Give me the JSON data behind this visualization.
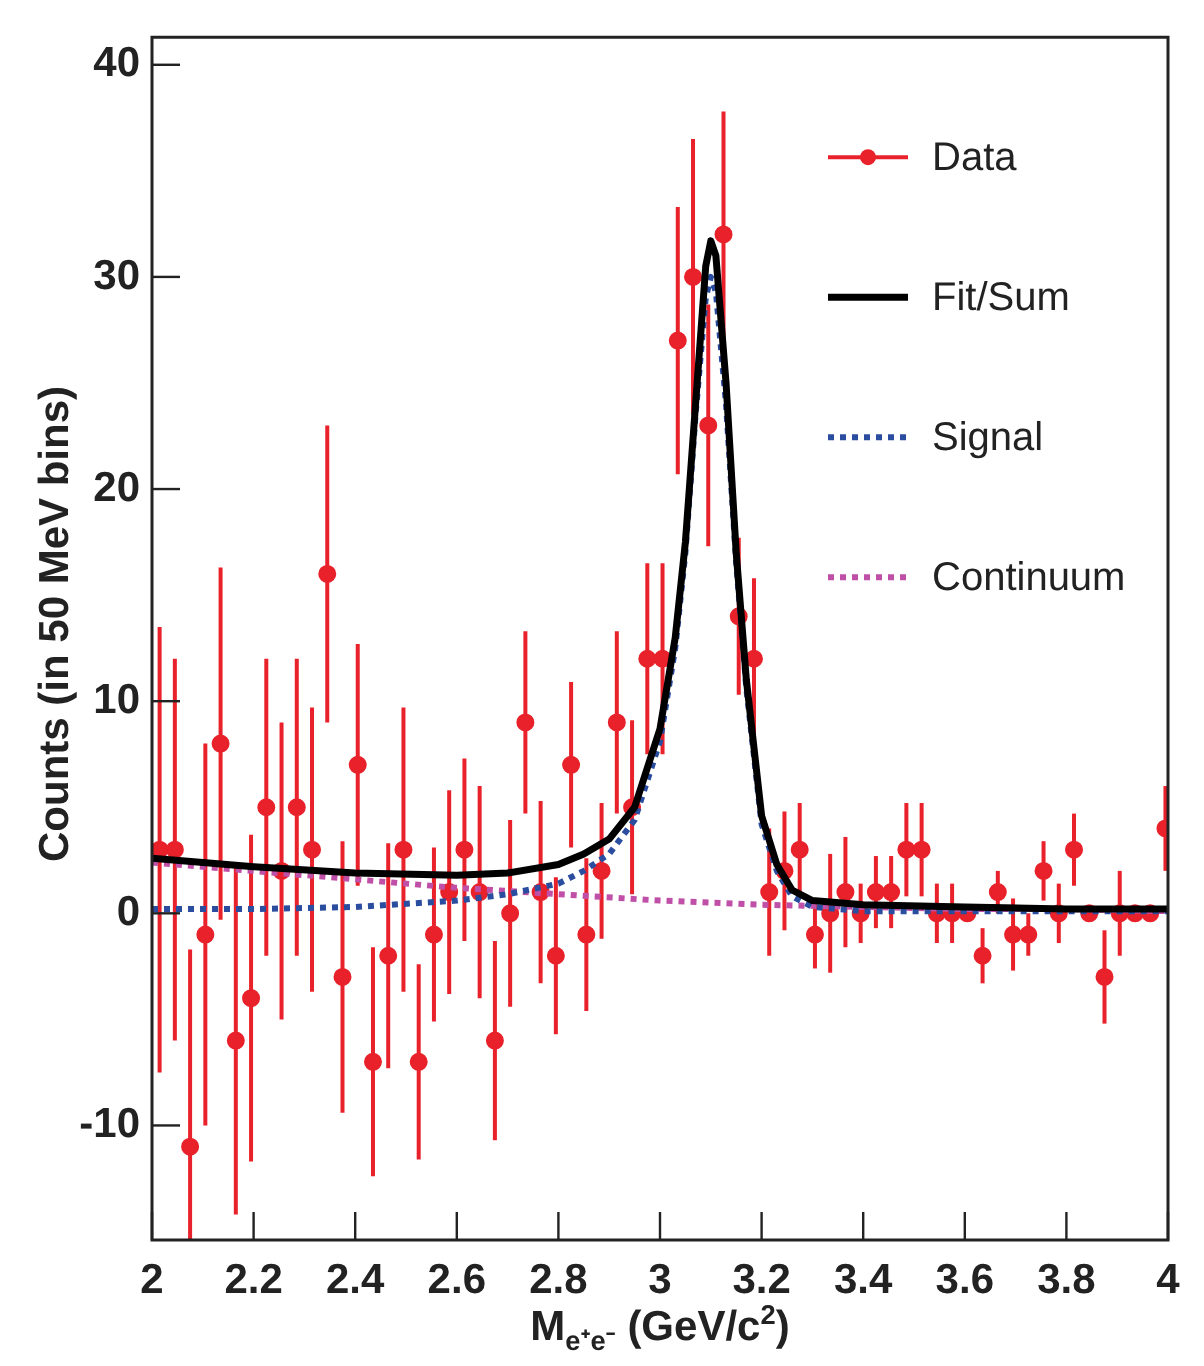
{
  "chart_data": {
    "type": "scatter",
    "xlabel": "M$_{e⁺e⁻}$ (GeV/c$^{2}$)",
    "ylabel": "Counts (in 50 MeV bins)",
    "xlim": [
      2,
      4
    ],
    "xticks": [
      2,
      2.2,
      2.4,
      2.6,
      2.8,
      3,
      3.2,
      3.4,
      3.6,
      3.8,
      4
    ],
    "ylim": [
      -15.4,
      41.3
    ],
    "yticks": [
      -10,
      0,
      10,
      20,
      30,
      40
    ],
    "legend": "top right",
    "grid": false,
    "series": [
      {
        "name": "Data",
        "type": "scatter",
        "color": "#e8212a",
        "marker": "circle",
        "x": [
          2.015,
          2.045,
          2.075,
          2.105,
          2.135,
          2.165,
          2.195,
          2.225,
          2.255,
          2.285,
          2.315,
          2.345,
          2.375,
          2.405,
          2.435,
          2.465,
          2.495,
          2.525,
          2.555,
          2.585,
          2.615,
          2.645,
          2.675,
          2.705,
          2.735,
          2.765,
          2.795,
          2.825,
          2.855,
          2.885,
          2.915,
          2.945,
          2.975,
          3.005,
          3.035,
          3.065,
          3.095,
          3.125,
          3.155,
          3.185,
          3.215,
          3.245,
          3.275,
          3.305,
          3.335,
          3.365,
          3.395,
          3.425,
          3.455,
          3.485,
          3.515,
          3.545,
          3.575,
          3.605,
          3.635,
          3.665,
          3.695,
          3.725,
          3.755,
          3.785,
          3.815,
          3.845,
          3.875,
          3.905,
          3.935,
          3.965,
          3.995
        ],
        "values": [
          3,
          3,
          -11,
          -1,
          8,
          -6,
          -4,
          5,
          2,
          5,
          3,
          16,
          -3,
          7,
          -7,
          -2,
          3,
          -7,
          -1,
          1,
          3,
          1,
          -6,
          0,
          9,
          1,
          -2,
          7,
          -1,
          2,
          9,
          5,
          12,
          12,
          27,
          30,
          23,
          32,
          14,
          12,
          1,
          2,
          3,
          -1,
          0,
          1,
          0,
          1,
          1,
          3,
          3,
          0,
          0,
          0,
          -2,
          1,
          -1,
          -1,
          2,
          0,
          3,
          0,
          -3,
          0,
          0,
          0,
          4
        ],
        "errors": [
          10.5,
          9,
          [
            -15.4,
            -1.7
          ],
          9,
          8.3,
          8.2,
          7.7,
          7,
          7,
          7,
          6.7,
          7,
          6.4,
          5.7,
          5.4,
          5.3,
          6.7,
          4.6,
          4.1,
          4.8,
          4.3,
          5,
          4.7,
          4.4,
          4.3,
          4.3,
          3.7,
          3.9,
          3.6,
          3.2,
          4.3,
          4.1,
          4.5,
          4.5,
          6.3,
          6.5,
          5.7,
          5.8,
          3.7,
          3.8,
          3,
          2.8,
          2.2,
          1.6,
          2.8,
          2.6,
          1.4,
          1.7,
          1.7,
          2.2,
          2.2,
          1.4,
          1.4,
          null,
          1.3,
          1,
          1.7,
          1,
          1.4,
          1.4,
          1.7,
          null,
          2.2,
          2,
          null,
          null,
          2
        ]
      },
      {
        "name": "Fit/Sum",
        "type": "line",
        "color": "#000000",
        "marker": "none",
        "line_style": "solid",
        "x": [
          2.0,
          2.2,
          2.4,
          2.6,
          2.7,
          2.8,
          2.85,
          2.9,
          2.95,
          3.0,
          3.03,
          3.05,
          3.07,
          3.09,
          3.1,
          3.11,
          3.13,
          3.15,
          3.17,
          3.2,
          3.23,
          3.26,
          3.3,
          3.4,
          3.6,
          3.8,
          4.0
        ],
        "values": [
          2.6,
          2.2,
          1.9,
          1.8,
          1.9,
          2.3,
          2.8,
          3.5,
          5,
          8.7,
          13,
          17.5,
          24,
          30.5,
          31.7,
          31,
          25,
          17,
          11,
          4.6,
          2.3,
          1.1,
          0.6,
          0.4,
          0.3,
          0.2,
          0.2
        ]
      },
      {
        "name": "Signal",
        "type": "line",
        "color": "#2a4da0",
        "marker": "none",
        "line_style": "dotted",
        "x": [
          2.0,
          2.2,
          2.4,
          2.6,
          2.7,
          2.8,
          2.85,
          2.9,
          2.95,
          3.0,
          3.03,
          3.05,
          3.07,
          3.09,
          3.1,
          3.11,
          3.13,
          3.15,
          3.17,
          3.2,
          3.23,
          3.26,
          3.3,
          3.4,
          3.6,
          3.8,
          4.0
        ],
        "values": [
          0.2,
          0.2,
          0.3,
          0.6,
          0.9,
          1.4,
          2,
          2.8,
          4.4,
          8.1,
          12.5,
          17,
          23.5,
          29,
          30,
          29.3,
          24,
          16.5,
          10.6,
          4.2,
          2,
          0.8,
          0.3,
          0.1,
          0.1,
          0.1,
          0.1
        ]
      },
      {
        "name": "Continuum",
        "type": "line",
        "color": "#c04fa8",
        "marker": "none",
        "line_style": "dotted",
        "x": [
          2.0,
          2.2,
          2.4,
          2.6,
          2.8,
          3.0,
          3.2,
          3.4,
          3.6,
          3.8,
          4.0
        ],
        "values": [
          2.4,
          2.0,
          1.6,
          1.2,
          0.9,
          0.6,
          0.4,
          0.3,
          0.2,
          0.2,
          0.1
        ]
      }
    ]
  }
}
